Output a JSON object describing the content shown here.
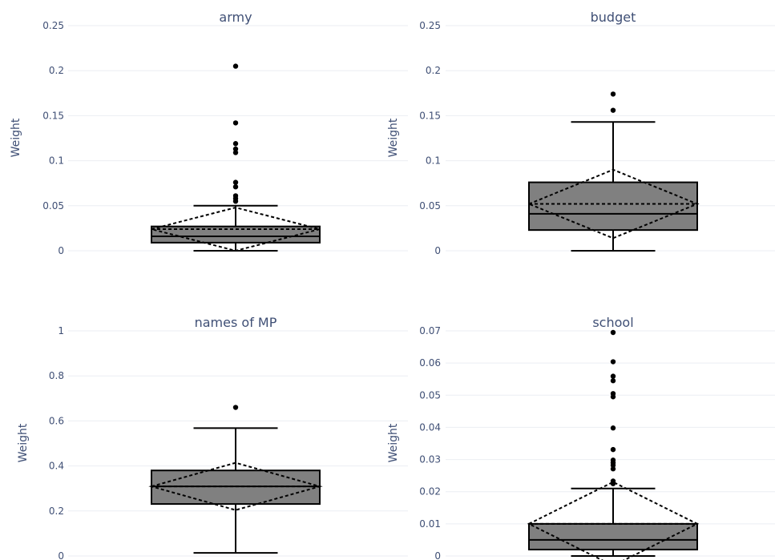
{
  "chart_data": [
    {
      "type": "box",
      "title": "army",
      "ylabel": "Weight",
      "ylim": [
        0,
        0.25
      ],
      "yticks": [
        0,
        0.05,
        0.1,
        0.15,
        0.2,
        0.25
      ],
      "ytick_labels": [
        "0",
        "0.05",
        "0.1",
        "0.15",
        "0.2",
        "0.25"
      ],
      "box": {
        "lower_fence": 0,
        "q1": 0.009,
        "median": 0.016,
        "q3": 0.027,
        "upper_fence": 0.05,
        "mean": 0.024,
        "sd": 0.024
      },
      "outliers": [
        0.055,
        0.058,
        0.061,
        0.071,
        0.076,
        0.109,
        0.113,
        0.119,
        0.142,
        0.205
      ],
      "fill_color": "#808080"
    },
    {
      "type": "box",
      "title": "budget",
      "ylabel": "Weight",
      "ylim": [
        0,
        0.25
      ],
      "yticks": [
        0,
        0.05,
        0.1,
        0.15,
        0.2,
        0.25
      ],
      "ytick_labels": [
        "0",
        "0.05",
        "0.1",
        "0.15",
        "0.2",
        "0.25"
      ],
      "box": {
        "lower_fence": 0,
        "q1": 0.023,
        "median": 0.041,
        "q3": 0.076,
        "upper_fence": 0.143,
        "mean": 0.052,
        "sd": 0.038
      },
      "outliers": [
        0.156,
        0.174
      ],
      "fill_color": "#808080"
    },
    {
      "type": "box",
      "title": "names of MP",
      "ylabel": "Weight",
      "ylim": [
        0,
        1
      ],
      "yticks": [
        0,
        0.2,
        0.4,
        0.6,
        0.8,
        1
      ],
      "ytick_labels": [
        "0",
        "0.2",
        "0.4",
        "0.6",
        "0.8",
        "1"
      ],
      "box": {
        "lower_fence": 0.014,
        "q1": 0.231,
        "median": 0.309,
        "q3": 0.38,
        "upper_fence": 0.568,
        "mean": 0.309,
        "sd": 0.105
      },
      "outliers": [
        0.66
      ],
      "fill_color": "#808080"
    },
    {
      "type": "box",
      "title": "school",
      "ylabel": "Weight",
      "ylim": [
        0,
        0.07
      ],
      "yticks": [
        0,
        0.01,
        0.02,
        0.03,
        0.04,
        0.05,
        0.06,
        0.07
      ],
      "ytick_labels": [
        "0",
        "0.01",
        "0.02",
        "0.03",
        "0.04",
        "0.05",
        "0.06",
        "0.07"
      ],
      "box": {
        "lower_fence": 0,
        "q1": 0.002,
        "median": 0.005,
        "q3": 0.01,
        "upper_fence": 0.021,
        "mean": 0.01,
        "sd": 0.013
      },
      "outliers": [
        0.0225,
        0.0233,
        0.0271,
        0.0282,
        0.029,
        0.0298,
        0.0331,
        0.0398,
        0.0495,
        0.0505,
        0.0545,
        0.0559,
        0.0604,
        0.0695
      ],
      "fill_color": "#808080"
    }
  ]
}
